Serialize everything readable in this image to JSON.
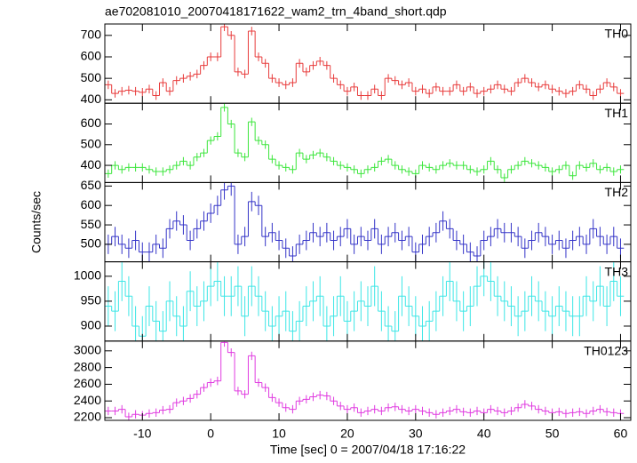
{
  "chart_data": {
    "type": "step",
    "title": "ae702081010_20070418171622_wam2_trn_4band_short.qdp",
    "x_label": "Time [sec] 0 = 2007/04/18 17:16:22",
    "y_label": "Counts/sec",
    "xlim": [
      -15.5,
      61.5
    ],
    "xticks": [
      -10,
      0,
      10,
      20,
      30,
      40,
      50,
      60
    ],
    "x": [
      -15,
      -14,
      -13,
      -12,
      -11,
      -10,
      -9,
      -8,
      -7,
      -6,
      -5,
      -4,
      -3,
      -2,
      -1,
      0,
      1,
      2,
      3,
      4,
      5,
      6,
      7,
      8,
      9,
      10,
      11,
      12,
      13,
      14,
      15,
      16,
      17,
      18,
      19,
      20,
      21,
      22,
      23,
      24,
      25,
      26,
      27,
      28,
      29,
      30,
      31,
      32,
      33,
      34,
      35,
      36,
      37,
      38,
      39,
      40,
      41,
      42,
      43,
      44,
      45,
      46,
      47,
      48,
      49,
      50,
      51,
      52,
      53,
      54,
      55,
      56,
      57,
      58,
      59,
      60
    ],
    "series": [
      {
        "name": "TH0",
        "color": "#e83c3c",
        "error": 20,
        "ylim": [
          384,
          753
        ],
        "yticks": [
          400,
          500,
          600,
          700
        ],
        "values": [
          470,
          430,
          440,
          445,
          440,
          435,
          450,
          420,
          480,
          440,
          490,
          500,
          510,
          520,
          560,
          600,
          600,
          740,
          700,
          530,
          520,
          720,
          600,
          570,
          500,
          480,
          470,
          480,
          570,
          530,
          560,
          580,
          560,
          500,
          470,
          440,
          460,
          420,
          420,
          450,
          420,
          500,
          490,
          470,
          480,
          440,
          450,
          430,
          460,
          440,
          440,
          470,
          440,
          460,
          430,
          440,
          450,
          470,
          450,
          440,
          480,
          500,
          480,
          460,
          470,
          450,
          440,
          430,
          440,
          470,
          450,
          420,
          450,
          480,
          460,
          430
        ]
      },
      {
        "name": "TH1",
        "color": "#3ce63c",
        "error": 20,
        "ylim": [
          317,
          700
        ],
        "yticks": [
          400,
          500,
          600
        ],
        "values": [
          360,
          400,
          380,
          390,
          390,
          390,
          380,
          370,
          370,
          380,
          400,
          420,
          400,
          440,
          460,
          520,
          540,
          680,
          600,
          460,
          440,
          610,
          520,
          500,
          430,
          400,
          390,
          380,
          460,
          430,
          450,
          460,
          440,
          420,
          400,
          390,
          380,
          360,
          380,
          390,
          420,
          430,
          400,
          380,
          370,
          360,
          400,
          390,
          380,
          400,
          410,
          400,
          400,
          380,
          370,
          380,
          420,
          380,
          340,
          380,
          400,
          420,
          410,
          400,
          390,
          370,
          380,
          400,
          350,
          400,
          390,
          410,
          380,
          390,
          370,
          380
        ]
      },
      {
        "name": "TH2",
        "color": "#3434c8",
        "error": 25,
        "ylim": [
          455,
          659
        ],
        "yticks": [
          500,
          550,
          600,
          650
        ],
        "values": [
          500,
          520,
          500,
          490,
          510,
          480,
          480,
          500,
          490,
          540,
          560,
          550,
          510,
          540,
          560,
          580,
          600,
          640,
          650,
          500,
          520,
          610,
          600,
          520,
          530,
          510,
          490,
          470,
          500,
          510,
          530,
          520,
          530,
          510,
          520,
          540,
          500,
          520,
          510,
          540,
          500,
          520,
          530,
          510,
          520,
          480,
          500,
          520,
          530,
          560,
          540,
          510,
          500,
          480,
          470,
          510,
          520,
          540,
          530,
          530,
          520,
          490,
          510,
          530,
          520,
          500,
          510,
          490,
          510,
          520,
          500,
          540,
          520,
          500,
          520,
          490
        ]
      },
      {
        "name": "TH3",
        "color": "#3ce6e6",
        "error": 40,
        "ylim": [
          870,
          1029
        ],
        "yticks": [
          900,
          950,
          1000
        ],
        "values": [
          940,
          930,
          990,
          960,
          900,
          880,
          940,
          910,
          890,
          950,
          920,
          900,
          970,
          940,
          950,
          980,
          990,
          960,
          960,
          980,
          920,
          980,
          960,
          930,
          900,
          920,
          930,
          890,
          910,
          940,
          950,
          960,
          900,
          920,
          960,
          910,
          930,
          950,
          940,
          980,
          930,
          900,
          890,
          960,
          940,
          920,
          900,
          910,
          930,
          960,
          990,
          950,
          930,
          940,
          980,
          1000,
          990,
          960,
          950,
          940,
          920,
          930,
          960,
          950,
          930,
          920,
          940,
          930,
          920,
          920,
          960,
          950,
          980,
          940,
          990,
          960
        ]
      },
      {
        "name": "TH0123",
        "color": "#e03ce0",
        "error": 50,
        "ylim": [
          2168,
          3117
        ],
        "yticks": [
          2200,
          2400,
          2600,
          2800,
          3000
        ],
        "values": [
          2280,
          2280,
          2300,
          2210,
          2240,
          2230,
          2250,
          2260,
          2290,
          2300,
          2380,
          2400,
          2430,
          2480,
          2560,
          2620,
          2640,
          3100,
          2980,
          2520,
          2480,
          2940,
          2620,
          2560,
          2440,
          2380,
          2320,
          2300,
          2400,
          2420,
          2450,
          2470,
          2460,
          2400,
          2340,
          2300,
          2320,
          2260,
          2280,
          2300,
          2280,
          2320,
          2330,
          2300,
          2280,
          2300,
          2280,
          2260,
          2240,
          2260,
          2280,
          2300,
          2270,
          2260,
          2280,
          2260,
          2300,
          2280,
          2260,
          2280,
          2320,
          2360,
          2340,
          2300,
          2280,
          2260,
          2270,
          2250,
          2260,
          2270,
          2250,
          2280,
          2300,
          2270,
          2260,
          2250
        ]
      }
    ]
  }
}
